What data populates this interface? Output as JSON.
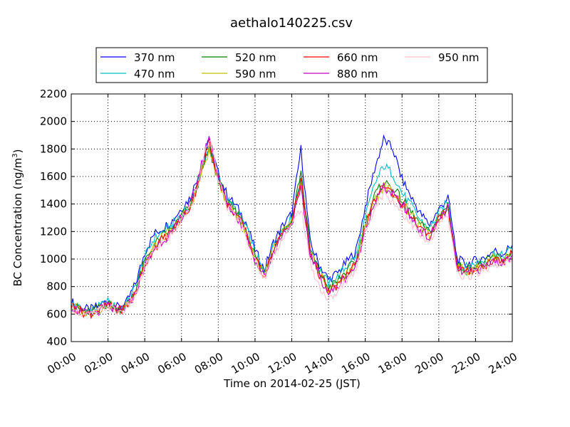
{
  "chart_data": {
    "type": "line",
    "title": "aethalo140225.csv",
    "xlabel": "Time on 2014-02-25 (JST)",
    "ylabel": "BC Concentration (ng/m",
    "ylabel_sup": "3",
    "ylabel_tail": ")",
    "x_ticks": [
      "00:00",
      "02:00",
      "04:00",
      "06:00",
      "08:00",
      "10:00",
      "12:00",
      "14:00",
      "16:00",
      "18:00",
      "20:00",
      "22:00",
      "24:00"
    ],
    "y_ticks": [
      "400",
      "600",
      "800",
      "1000",
      "1200",
      "1400",
      "1600",
      "1800",
      "2000",
      "2200"
    ],
    "xlim_hours": [
      0,
      24
    ],
    "ylim": [
      400,
      2200
    ],
    "grid": true,
    "legend_placement": "top-center",
    "series": [
      {
        "name": "370 nm",
        "color": "#0000ff",
        "values": [
          690,
          650,
          630,
          660,
          700,
          650,
          680,
          820,
          1050,
          1180,
          1230,
          1280,
          1370,
          1450,
          1650,
          1860,
          1620,
          1460,
          1380,
          1270,
          1070,
          920,
          1120,
          1240,
          1330,
          1800,
          1120,
          960,
          850,
          900,
          980,
          1060,
          1380,
          1650,
          1870,
          1800,
          1580,
          1450,
          1330,
          1250,
          1360,
          1450,
          1000,
          960,
          990,
          1010,
          1060,
          1040,
          1100
        ]
      },
      {
        "name": "470 nm",
        "color": "#00bfbf",
        "values": [
          680,
          640,
          620,
          650,
          690,
          640,
          670,
          800,
          1010,
          1150,
          1200,
          1250,
          1330,
          1410,
          1610,
          1810,
          1590,
          1430,
          1350,
          1240,
          1040,
          900,
          1100,
          1220,
          1300,
          1600,
          1090,
          930,
          820,
          870,
          950,
          1020,
          1300,
          1540,
          1680,
          1620,
          1480,
          1390,
          1280,
          1220,
          1330,
          1420,
          980,
          940,
          970,
          990,
          1040,
          1020,
          1080
        ]
      },
      {
        "name": "520 nm",
        "color": "#008000",
        "values": [
          670,
          630,
          610,
          640,
          680,
          630,
          660,
          780,
          980,
          1100,
          1170,
          1220,
          1310,
          1390,
          1590,
          1800,
          1580,
          1410,
          1330,
          1220,
          1020,
          890,
          1080,
          1200,
          1280,
          1640,
          1070,
          910,
          790,
          840,
          920,
          990,
          1260,
          1460,
          1560,
          1520,
          1430,
          1340,
          1250,
          1190,
          1300,
          1400,
          960,
          920,
          950,
          970,
          1020,
          1000,
          1060
        ]
      },
      {
        "name": "590 nm",
        "color": "#bfbf00",
        "values": [
          665,
          625,
          605,
          635,
          675,
          625,
          655,
          770,
          970,
          1090,
          1160,
          1210,
          1300,
          1380,
          1580,
          1790,
          1570,
          1400,
          1320,
          1210,
          1010,
          880,
          1070,
          1190,
          1270,
          1520,
          1060,
          900,
          770,
          820,
          900,
          970,
          1240,
          1430,
          1530,
          1490,
          1410,
          1320,
          1230,
          1170,
          1290,
          1390,
          950,
          910,
          940,
          960,
          1010,
          990,
          1050
        ]
      },
      {
        "name": "660 nm",
        "color": "#ff0000",
        "values": [
          660,
          620,
          600,
          630,
          670,
          620,
          650,
          760,
          960,
          1080,
          1150,
          1200,
          1300,
          1380,
          1600,
          1850,
          1590,
          1400,
          1320,
          1200,
          1000,
          880,
          1060,
          1190,
          1270,
          1580,
          1050,
          890,
          760,
          810,
          890,
          960,
          1230,
          1420,
          1540,
          1480,
          1400,
          1310,
          1220,
          1160,
          1300,
          1380,
          940,
          900,
          930,
          950,
          1000,
          980,
          1040
        ]
      },
      {
        "name": "880 nm",
        "color": "#bf00bf",
        "values": [
          655,
          615,
          595,
          625,
          665,
          615,
          645,
          750,
          950,
          1070,
          1140,
          1190,
          1310,
          1400,
          1640,
          1900,
          1600,
          1390,
          1310,
          1190,
          990,
          870,
          1050,
          1180,
          1260,
          1500,
          1040,
          880,
          750,
          800,
          880,
          950,
          1220,
          1410,
          1520,
          1470,
          1390,
          1300,
          1210,
          1150,
          1290,
          1370,
          930,
          890,
          920,
          940,
          990,
          970,
          1030
        ]
      },
      {
        "name": "950 nm",
        "color": "#ffc0cb",
        "values": [
          650,
          610,
          590,
          620,
          660,
          610,
          640,
          740,
          940,
          1060,
          1130,
          1180,
          1290,
          1380,
          1610,
          1880,
          1580,
          1380,
          1300,
          1180,
          980,
          860,
          1030,
          1160,
          1240,
          1380,
          970,
          800,
          700,
          760,
          850,
          930,
          1200,
          1380,
          1480,
          1420,
          1340,
          1260,
          1170,
          1110,
          1250,
          1300,
          900,
          870,
          900,
          920,
          970,
          950,
          1010
        ]
      }
    ]
  }
}
